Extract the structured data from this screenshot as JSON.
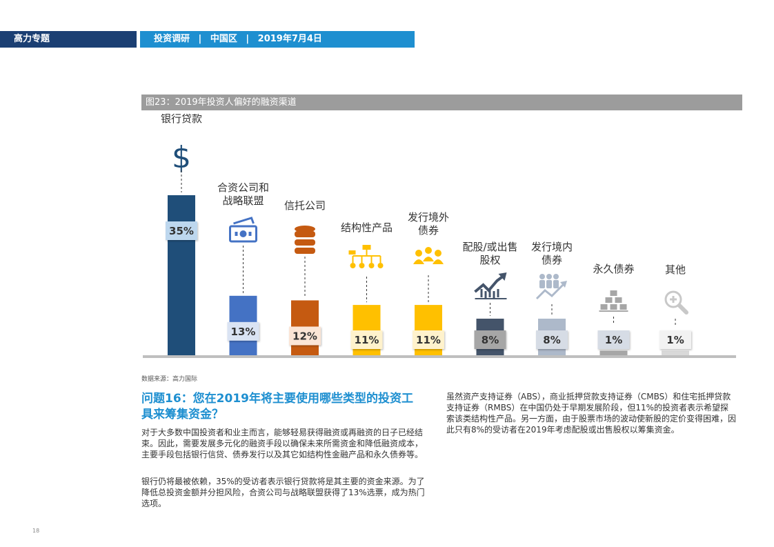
{
  "header": {
    "section": "高力专题",
    "topic": "投资调研",
    "region": "中国区",
    "date": "2019年7月4日",
    "separator": "|"
  },
  "figure_title": "图23：2019年投资人偏好的融资渠道",
  "source": "数据来源：高力国际",
  "question": "问题16：您在2019年将主要使用哪些类型的投资工具来筹集资金？",
  "paragraphs": [
    "对于大多数中国投资者和业主而言，能够轻易获得融资或再融资的日子已经结束。因此，需要发展多元化的融资手段以确保未来所需资金和降低融资成本，主要手段包括银行信贷、债券发行以及其它如结构性金融产品和永久债券等。",
    "银行仍将最被依赖，35%的受访者表示银行贷款将是其主要的资金来源。为了降低总投资金额并分担风险，合资公司与战略联盟获得了13%选票，成为热门选项。",
    "虽然资产支持证券（ABS），商业抵押贷款支持证券（CMBS）和住宅抵押贷款支持证券（RMBS）在中国仍处于早期发展阶段，但11%的投资者表示希望探索该类结构性产品。另一方面，由于股票市场的波动使新股的定价变得困难，因此只有8%的受访者在2019年考虑配股或出售股权以筹集资金。"
  ],
  "page_number": "18",
  "chart_data": {
    "type": "bar",
    "title": "图23：2019年投资人偏好的融资渠道",
    "categories": [
      "银行贷款",
      "合资公司和战略联盟",
      "信托公司",
      "结构性产品",
      "发行境外债券",
      "配股/或出售股权",
      "发行境内债券",
      "永久债券",
      "其他"
    ],
    "category_lines": [
      [
        "银行贷款"
      ],
      [
        "合资公司和",
        "战略联盟"
      ],
      [
        "信托公司"
      ],
      [
        "结构性产品"
      ],
      [
        "发行境外",
        "债券"
      ],
      [
        "配股/或出售",
        "股权"
      ],
      [
        "发行境内",
        "债券"
      ],
      [
        "永久债券"
      ],
      [
        "其他"
      ]
    ],
    "values": [
      35,
      13,
      12,
      11,
      11,
      8,
      8,
      1,
      1
    ],
    "value_labels": [
      "35%",
      "13%",
      "12%",
      "11%",
      "11%",
      "8%",
      "8%",
      "1%",
      "1%"
    ],
    "icons": [
      "dollar-icon",
      "money-icon",
      "database-icon",
      "org-chart-icon",
      "people-icon",
      "stock-chart-icon",
      "people-growth-icon",
      "gold-bars-icon",
      "magnifier-plus-icon"
    ],
    "colors": [
      "#1f4e79",
      "#4472c4",
      "#c55a11",
      "#ffc000",
      "#ffc000",
      "#44546a",
      "#adb9ca",
      "#a6a6a6",
      "#d9d9d9"
    ],
    "label_box_colors": [
      "#bdd7ee",
      "#dae3f3",
      "#fbe5d6",
      "#fff2cc",
      "#fff2cc",
      "#a6a6a6",
      "#d6dce5",
      "#d6dce5",
      "#f2f2f2"
    ],
    "ylim": [
      0,
      35
    ],
    "legend": "none",
    "grid": false
  }
}
